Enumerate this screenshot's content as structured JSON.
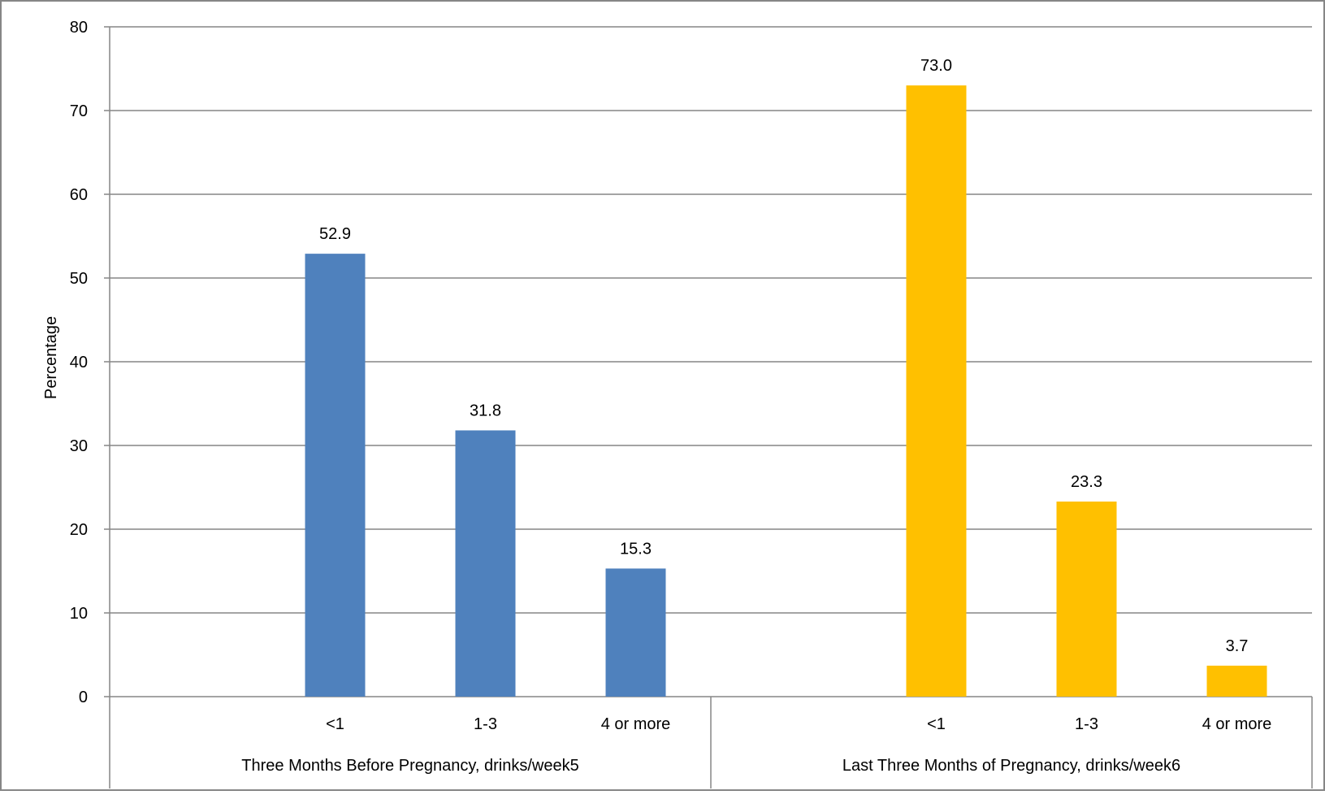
{
  "chart_data": {
    "type": "bar",
    "title": "",
    "ylabel": "Percentage",
    "xlabel": "",
    "ylim": [
      0,
      80
    ],
    "yticks": [
      0,
      10,
      20,
      30,
      40,
      50,
      60,
      70,
      80
    ],
    "grid": true,
    "legend": "none",
    "groups": [
      {
        "label": "Three Months Before Pregnancy, drinks/week5",
        "color": "#4F81BD",
        "categories": [
          "<1",
          "1-3",
          "4 or more"
        ],
        "values": [
          52.9,
          31.8,
          15.3
        ],
        "value_labels": [
          "52.9",
          "31.8",
          "15.3"
        ]
      },
      {
        "label": "Last Three Months of Pregnancy, drinks/week6",
        "color": "#FFC000",
        "categories": [
          "<1",
          "1-3",
          "4 or more"
        ],
        "values": [
          73.0,
          23.3,
          3.7
        ],
        "value_labels": [
          "73.0",
          "23.3",
          "3.7"
        ]
      }
    ]
  }
}
